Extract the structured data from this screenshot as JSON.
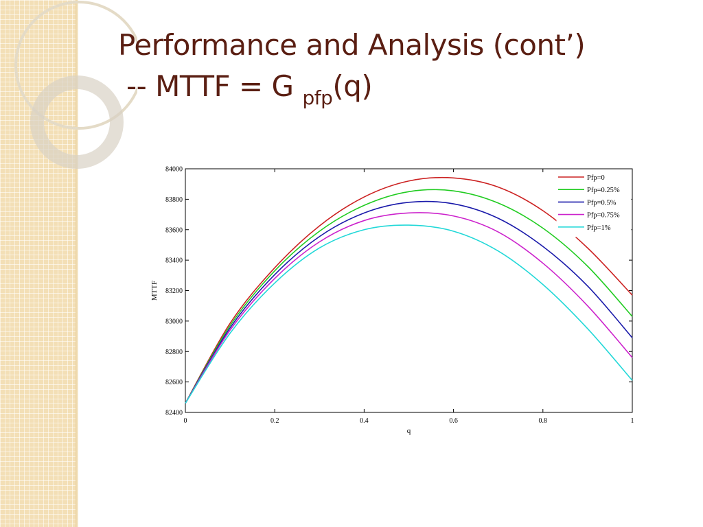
{
  "slide": {
    "title_line1": "Performance and Analysis (cont’)",
    "title_line2_prefix": "-- MTTF = G",
    "title_line2_subscript": "pfp",
    "title_line2_suffix": "(q)"
  },
  "colors": {
    "title": "#5a1e12",
    "strip": "#f3dfb6"
  },
  "chart_data": {
    "type": "line",
    "xlabel": "q",
    "ylabel": "MTTF",
    "xlim": [
      0,
      1
    ],
    "ylim": [
      82400,
      84000
    ],
    "xticks": [
      "0",
      "0.2",
      "0.4",
      "0.6",
      "0.8",
      "1"
    ],
    "xtick_values": [
      0,
      0.2,
      0.4,
      0.6,
      0.8,
      1
    ],
    "yticks": [
      "82400",
      "82600",
      "82800",
      "83000",
      "83200",
      "83400",
      "83600",
      "83800",
      "84000"
    ],
    "ytick_values": [
      82400,
      82600,
      82800,
      83000,
      83200,
      83400,
      83600,
      83800,
      84000
    ],
    "grid": false,
    "legend_position": "top-right",
    "x": [
      0,
      0.1,
      0.2,
      0.3,
      0.4,
      0.5,
      0.6,
      0.7,
      0.8,
      0.9,
      1.0
    ],
    "series": [
      {
        "name": "Pfp=0",
        "color": "#cc2222",
        "values": [
          82460,
          82985,
          83350,
          83625,
          83815,
          83920,
          83940,
          83880,
          83725,
          83480,
          83170
        ]
      },
      {
        "name": "Pfp=0.25%",
        "color": "#22cc22",
        "values": [
          82460,
          82970,
          83330,
          83590,
          83760,
          83850,
          83855,
          83775,
          83610,
          83360,
          83030
        ]
      },
      {
        "name": "Pfp=0.5%",
        "color": "#1a1aaa",
        "values": [
          82460,
          82955,
          83305,
          83555,
          83710,
          83780,
          83770,
          83675,
          83490,
          83230,
          82890
        ]
      },
      {
        "name": "Pfp=0.75%",
        "color": "#cc22cc",
        "values": [
          82460,
          82940,
          83280,
          83520,
          83660,
          83710,
          83690,
          83585,
          83380,
          83100,
          82760
        ]
      },
      {
        "name": "Pfp=1%",
        "color": "#22d8d8",
        "values": [
          82460,
          82920,
          83250,
          83480,
          83600,
          83630,
          83590,
          83460,
          83240,
          82950,
          82610
        ]
      }
    ]
  }
}
